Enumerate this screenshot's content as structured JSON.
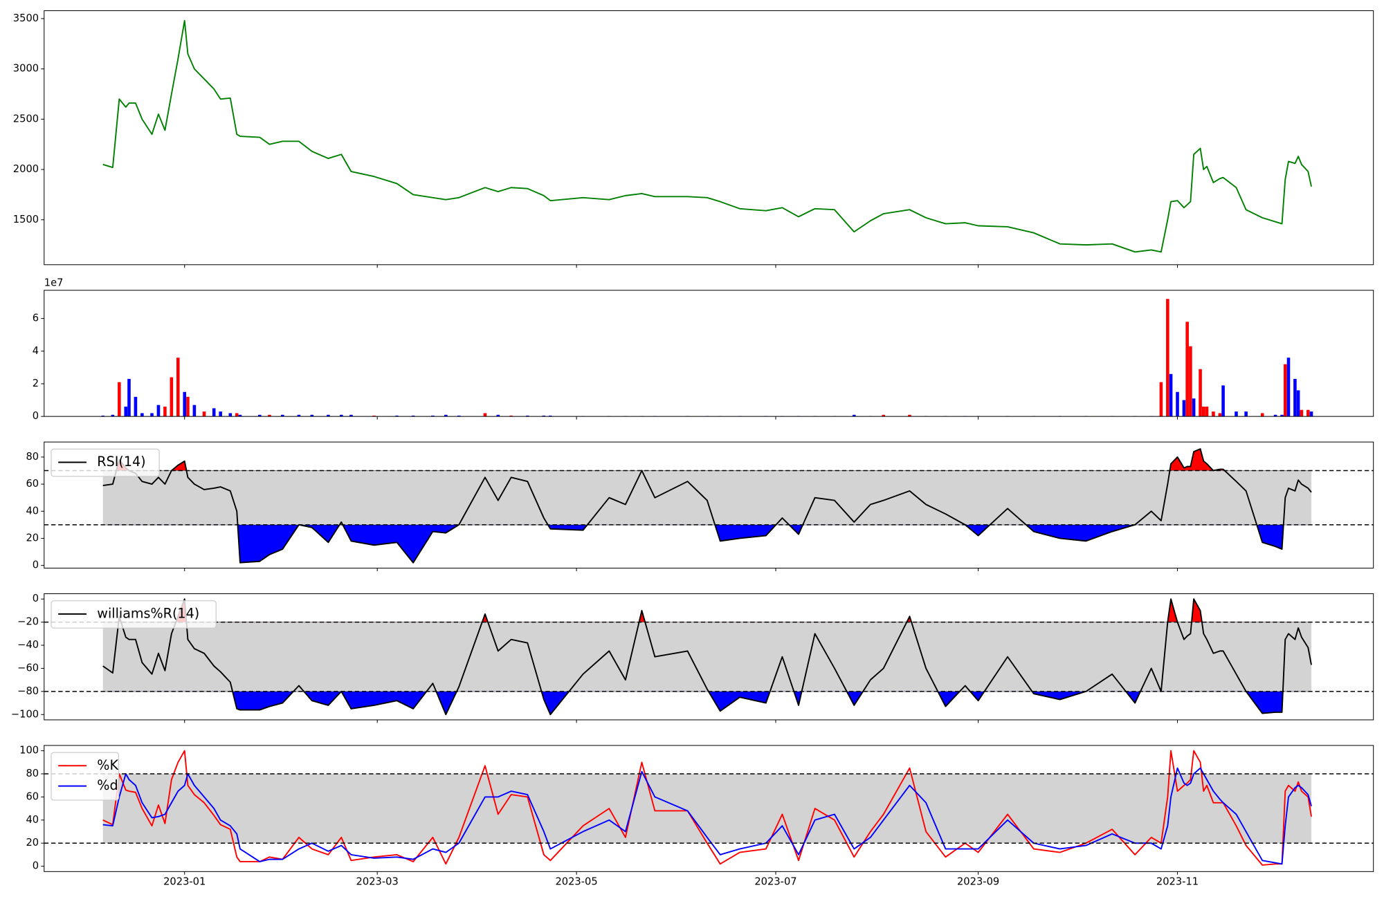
{
  "chart_data": [
    {
      "type": "line",
      "color": "green",
      "x": [
        "2022-12-07",
        "2022-12-10",
        "2022-12-12",
        "2022-12-14",
        "2022-12-15",
        "2022-12-17",
        "2022-12-19",
        "2022-12-22",
        "2022-12-24",
        "2022-12-26",
        "2022-12-28",
        "2022-12-30",
        "2023-01-01",
        "2023-01-02",
        "2023-01-04",
        "2023-01-07",
        "2023-01-10",
        "2023-01-12",
        "2023-01-15",
        "2023-01-17",
        "2023-01-18",
        "2023-01-24",
        "2023-01-27",
        "2023-01-31",
        "2023-02-05",
        "2023-02-09",
        "2023-02-14",
        "2023-02-18",
        "2023-02-21",
        "2023-02-28",
        "2023-03-07",
        "2023-03-12",
        "2023-03-18",
        "2023-03-22",
        "2023-03-26",
        "2023-04-03",
        "2023-04-07",
        "2023-04-11",
        "2023-04-16",
        "2023-04-21",
        "2023-04-23",
        "2023-05-03",
        "2023-05-11",
        "2023-05-16",
        "2023-05-21",
        "2023-05-25",
        "2023-06-04",
        "2023-06-10",
        "2023-06-14",
        "2023-06-20",
        "2023-06-28",
        "2023-07-03",
        "2023-07-08",
        "2023-07-13",
        "2023-07-19",
        "2023-07-25",
        "2023-07-30",
        "2023-08-03",
        "2023-08-11",
        "2023-08-16",
        "2023-08-22",
        "2023-08-28",
        "2023-09-01",
        "2023-09-10",
        "2023-09-18",
        "2023-09-26",
        "2023-10-04",
        "2023-10-12",
        "2023-10-19",
        "2023-10-24",
        "2023-10-27",
        "2023-10-29",
        "2023-10-30",
        "2023-11-01",
        "2023-11-03",
        "2023-11-04",
        "2023-11-05",
        "2023-11-06",
        "2023-11-08",
        "2023-11-09",
        "2023-11-10",
        "2023-11-12",
        "2023-11-14",
        "2023-11-15",
        "2023-11-19",
        "2023-11-22",
        "2023-11-27",
        "2023-12-01",
        "2023-12-03",
        "2023-12-04",
        "2023-12-05",
        "2023-12-07",
        "2023-12-08",
        "2023-12-09",
        "2023-12-11",
        "2023-12-12"
      ],
      "xlim": [
        "2022-11-19",
        "2023-12-31"
      ],
      "values": [
        2050,
        2020,
        2700,
        2620,
        2660,
        2660,
        2500,
        2350,
        2550,
        2390,
        2750,
        3100,
        3480,
        3150,
        3000,
        2900,
        2800,
        2700,
        2710,
        2350,
        2330,
        2320,
        2250,
        2280,
        2280,
        2180,
        2110,
        2150,
        1980,
        1930,
        1860,
        1750,
        1720,
        1700,
        1720,
        1820,
        1780,
        1820,
        1810,
        1740,
        1690,
        1720,
        1700,
        1740,
        1760,
        1730,
        1730,
        1720,
        1680,
        1610,
        1590,
        1620,
        1530,
        1610,
        1600,
        1380,
        1490,
        1560,
        1600,
        1520,
        1460,
        1470,
        1440,
        1430,
        1370,
        1260,
        1250,
        1260,
        1180,
        1200,
        1180,
        1500,
        1680,
        1690,
        1620,
        1650,
        1680,
        2150,
        2210,
        2000,
        2030,
        1870,
        1910,
        1920,
        1820,
        1600,
        1520,
        1480,
        1460,
        1900,
        2080,
        2060,
        2130,
        2050,
        1980,
        1830
      ],
      "ylim": [
        1053,
        3579
      ],
      "yticks": [
        1500,
        2000,
        2500,
        3000,
        3500
      ]
    },
    {
      "type": "bar",
      "offset_label": "1e7",
      "values": [
        0.05,
        0.1,
        2.1,
        0.6,
        2.3,
        1.2,
        0.2,
        0.2,
        0.7,
        0.6,
        2.4,
        3.6,
        1.5,
        1.2,
        0.7,
        0.3,
        0.5,
        0.3,
        0.2,
        0.2,
        0.1,
        0.1,
        0.1,
        0.1,
        0.1,
        0.1,
        0.1,
        0.1,
        0.1,
        0.05,
        0.05,
        0.05,
        0.05,
        0.1,
        0.05,
        0.2,
        0.1,
        0.05,
        0.05,
        0.05,
        0.05,
        0.02,
        0.02,
        0.02,
        0.02,
        0.02,
        0.02,
        0.02,
        0.02,
        0.02,
        0.02,
        0.02,
        0.02,
        0.02,
        0.02,
        0.1,
        0.02,
        0.1,
        0.1,
        0.02,
        0.02,
        0.02,
        0.02,
        0.02,
        0.02,
        0.02,
        0.02,
        0.02,
        0.02,
        0.02,
        2.1,
        7.2,
        2.6,
        1.5,
        1.0,
        5.8,
        4.3,
        1.1,
        2.9,
        0.6,
        0.6,
        0.3,
        0.2,
        1.9,
        0.3,
        0.3,
        0.2,
        0.1,
        0.1,
        3.2,
        3.6,
        2.3,
        1.6,
        0.4,
        0.4,
        0.3
      ],
      "colors": [
        "blue",
        "blue",
        "red",
        "blue",
        "blue",
        "blue",
        "blue",
        "blue",
        "blue",
        "red",
        "red",
        "red",
        "blue",
        "red",
        "blue",
        "red",
        "blue",
        "blue",
        "blue",
        "red",
        "blue",
        "blue",
        "red",
        "blue",
        "blue",
        "blue",
        "blue",
        "blue",
        "blue",
        "red",
        "blue",
        "blue",
        "blue",
        "blue",
        "blue",
        "red",
        "blue",
        "red",
        "blue",
        "blue",
        "blue",
        "blue",
        "blue",
        "blue",
        "blue",
        "blue",
        "blue",
        "blue",
        "blue",
        "blue",
        "blue",
        "blue",
        "blue",
        "blue",
        "blue",
        "blue",
        "blue",
        "red",
        "red",
        "blue",
        "blue",
        "blue",
        "blue",
        "blue",
        "blue",
        "blue",
        "blue",
        "blue",
        "blue",
        "blue",
        "red",
        "red",
        "blue",
        "blue",
        "blue",
        "red",
        "red",
        "blue",
        "red",
        "red",
        "red",
        "red",
        "red",
        "blue",
        "blue",
        "blue",
        "red",
        "blue",
        "blue",
        "red",
        "blue",
        "blue",
        "blue",
        "red",
        "red",
        "blue"
      ],
      "ylim": [
        0,
        7.73
      ],
      "yticks": [
        0,
        2,
        4,
        6
      ]
    },
    {
      "type": "band-line",
      "upper": 70,
      "lower": 30,
      "band_color": "lightgray",
      "upper_color": "red",
      "lower_color": "blue",
      "legend": "upper left",
      "series": [
        {
          "name": "RSI(14)",
          "color": "black",
          "values": [
            59,
            60,
            78,
            72,
            70,
            68,
            62,
            60,
            65,
            60,
            70,
            74,
            77,
            65,
            60,
            56,
            57,
            58,
            55,
            40,
            2,
            3,
            8,
            12,
            30,
            28,
            17,
            32,
            18,
            15,
            17,
            2,
            25,
            24,
            30,
            65,
            48,
            65,
            62,
            35,
            27,
            26,
            50,
            45,
            70,
            50,
            62,
            48,
            18,
            20,
            22,
            35,
            23,
            50,
            48,
            32,
            45,
            48,
            55,
            45,
            38,
            30,
            22,
            42,
            25,
            20,
            18,
            25,
            30,
            40,
            33,
            60,
            75,
            80,
            72,
            73,
            73,
            84,
            86,
            77,
            75,
            70,
            71,
            71,
            62,
            55,
            17,
            14,
            12,
            50,
            57,
            55,
            63,
            60,
            57,
            54
          ]
        }
      ],
      "ylim": [
        -2,
        91.1
      ],
      "yticks": [
        0,
        20,
        40,
        60,
        80
      ]
    },
    {
      "type": "band-line",
      "upper": -20,
      "lower": -80,
      "band_color": "lightgray",
      "upper_color": "red",
      "lower_color": "blue",
      "legend": "upper left",
      "series": [
        {
          "name": "williams%R(14)",
          "color": "black",
          "values": [
            -58,
            -64,
            -15,
            -33,
            -35,
            -35,
            -55,
            -65,
            -47,
            -62,
            -30,
            -15,
            0,
            -35,
            -43,
            -47,
            -58,
            -63,
            -72,
            -95,
            -96,
            -96,
            -93,
            -90,
            -75,
            -88,
            -92,
            -80,
            -95,
            -92,
            -88,
            -95,
            -73,
            -100,
            -76,
            -13,
            -45,
            -35,
            -38,
            -87,
            -100,
            -65,
            -45,
            -70,
            -10,
            -50,
            -45,
            -78,
            -97,
            -85,
            -90,
            -50,
            -92,
            -30,
            -60,
            -92,
            -70,
            -60,
            -15,
            -60,
            -93,
            -75,
            -88,
            -50,
            -82,
            -87,
            -80,
            -65,
            -90,
            -60,
            -80,
            -20,
            0,
            -20,
            -35,
            -32,
            -30,
            0,
            -10,
            -30,
            -35,
            -47,
            -45,
            -45,
            -65,
            -80,
            -99,
            -98,
            -98,
            -35,
            -30,
            -35,
            -25,
            -33,
            -42,
            -57
          ]
        }
      ],
      "ylim": [
        -104.6,
        4.6
      ],
      "yticks": [
        0,
        {
          "value": -20,
          "label": "−20"
        },
        {
          "value": -40,
          "label": "−40"
        },
        {
          "value": -60,
          "label": "−60"
        },
        {
          "value": -80,
          "label": "−80"
        },
        {
          "value": -100,
          "label": "−100"
        }
      ]
    },
    {
      "type": "band-line",
      "upper": 80,
      "lower": 20,
      "band_color": "lightgray",
      "legend": "upper left",
      "series": [
        {
          "name": "%K",
          "color": "red",
          "values": [
            40,
            36,
            80,
            66,
            65,
            64,
            50,
            35,
            53,
            37,
            75,
            90,
            100,
            70,
            62,
            55,
            44,
            36,
            32,
            8,
            4,
            4,
            8,
            6,
            25,
            15,
            10,
            25,
            5,
            8,
            10,
            4,
            25,
            2,
            25,
            87,
            45,
            62,
            60,
            10,
            5,
            35,
            50,
            25,
            90,
            48,
            48,
            20,
            2,
            12,
            15,
            45,
            5,
            50,
            40,
            8,
            30,
            45,
            85,
            30,
            8,
            20,
            12,
            45,
            15,
            12,
            20,
            32,
            10,
            25,
            20,
            60,
            100,
            65,
            70,
            72,
            75,
            100,
            90,
            65,
            70,
            55,
            55,
            55,
            35,
            18,
            1,
            2,
            2,
            65,
            70,
            65,
            73,
            65,
            60,
            43
          ]
        },
        {
          "name": "%d",
          "color": "blue",
          "values": [
            36,
            35,
            60,
            80,
            75,
            70,
            55,
            42,
            43,
            45,
            55,
            65,
            70,
            80,
            70,
            60,
            50,
            40,
            35,
            28,
            15,
            4,
            6,
            6,
            15,
            20,
            13,
            18,
            10,
            7,
            8,
            6,
            15,
            12,
            20,
            60,
            60,
            65,
            62,
            30,
            15,
            30,
            40,
            30,
            82,
            60,
            48,
            25,
            10,
            15,
            20,
            35,
            10,
            40,
            45,
            15,
            25,
            40,
            70,
            55,
            15,
            15,
            15,
            40,
            20,
            15,
            18,
            28,
            20,
            20,
            15,
            35,
            60,
            85,
            72,
            70,
            72,
            80,
            85,
            80,
            75,
            65,
            58,
            55,
            45,
            30,
            5,
            3,
            2,
            35,
            60,
            68,
            70,
            68,
            62,
            52
          ]
        }
      ],
      "ylim": [
        -4.6,
        104.6
      ],
      "yticks": [
        0,
        20,
        40,
        60,
        80,
        100
      ],
      "xticks": [
        {
          "value": "2023-01-01",
          "label": "2023-01"
        },
        {
          "value": "2023-03-01",
          "label": "2023-03"
        },
        {
          "value": "2023-05-01",
          "label": "2023-05"
        },
        {
          "value": "2023-07-01",
          "label": "2023-07"
        },
        {
          "value": "2023-09-01",
          "label": "2023-09"
        },
        {
          "value": "2023-11-01",
          "label": "2023-11"
        }
      ]
    }
  ]
}
